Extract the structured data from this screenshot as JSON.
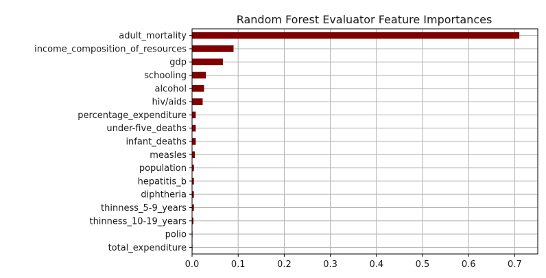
{
  "chart_data": {
    "type": "bar",
    "orientation": "horizontal",
    "title": "Random Forest Evaluator Feature Importances",
    "xlabel": "",
    "ylabel": "",
    "xlim": [
      0,
      0.75
    ],
    "xticks": [
      "0.0",
      "0.1",
      "0.2",
      "0.3",
      "0.4",
      "0.5",
      "0.6",
      "0.7"
    ],
    "grid": true,
    "bar_color": "#800000",
    "categories": [
      "adult_mortality",
      "income_composition_of_resources",
      "gdp",
      "schooling",
      "alcohol",
      "hiv/aids",
      "percentage_expenditure",
      "under-five_deaths",
      "infant_deaths",
      "measles",
      "population",
      "hepatitis_b",
      "diphtheria",
      "thinness_5-9_years",
      "thinness_10-19_years",
      "polio",
      "total_expenditure"
    ],
    "values": [
      0.71,
      0.09,
      0.067,
      0.03,
      0.026,
      0.023,
      0.008,
      0.008,
      0.008,
      0.006,
      0.004,
      0.004,
      0.004,
      0.004,
      0.003,
      0.001,
      0.001
    ]
  }
}
